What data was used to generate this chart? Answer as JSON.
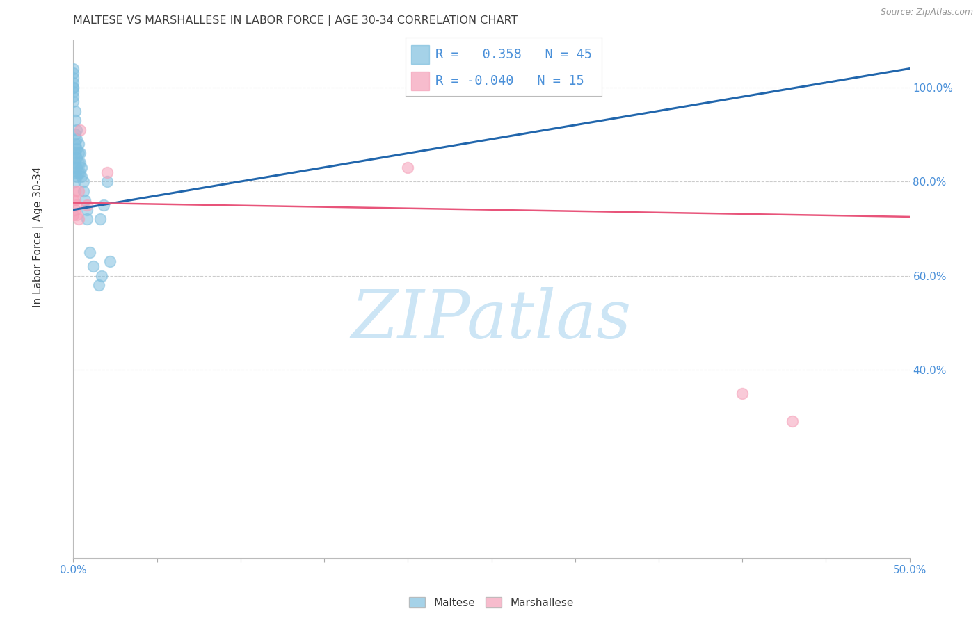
{
  "title": "MALTESE VS MARSHALLESE IN LABOR FORCE | AGE 30-34 CORRELATION CHART",
  "source": "Source: ZipAtlas.com",
  "ylabel": "In Labor Force | Age 30-34",
  "legend_R_blue": "0.358",
  "legend_N_blue": "45",
  "legend_R_pink": "-0.040",
  "legend_N_pink": "15",
  "blue_scatter_color": "#7fbfdf",
  "pink_scatter_color": "#f5a0b8",
  "blue_line_color": "#2166ac",
  "pink_line_color": "#e8547a",
  "right_axis_color": "#4a90d9",
  "watermark_color": "#cce5f5",
  "title_color": "#404040",
  "source_color": "#999999",
  "legend_text_color": "#4a90d9",
  "bottom_legend_text_color": "#333333",
  "xlim": [
    0.0,
    0.5
  ],
  "ylim": [
    0.0,
    1.1
  ],
  "yticks_right": [
    0.4,
    0.6,
    0.8,
    1.0
  ],
  "ytick_labels_right": [
    "40.0%",
    "60.0%",
    "80.0%",
    "100.0%"
  ],
  "maltese_x": [
    0.0,
    0.0,
    0.0,
    0.0,
    0.0,
    0.0,
    0.0,
    0.0,
    0.0,
    0.001,
    0.001,
    0.001,
    0.001,
    0.001,
    0.001,
    0.001,
    0.001,
    0.002,
    0.002,
    0.002,
    0.002,
    0.002,
    0.002,
    0.003,
    0.003,
    0.003,
    0.003,
    0.004,
    0.004,
    0.004,
    0.005,
    0.005,
    0.006,
    0.006,
    0.007,
    0.008,
    0.008,
    0.01,
    0.012,
    0.015,
    0.016,
    0.017,
    0.018,
    0.02,
    0.022
  ],
  "maltese_y": [
    0.97,
    0.99,
    1.0,
    1.01,
    1.02,
    1.03,
    1.04,
    1.0,
    0.98,
    0.93,
    0.95,
    0.9,
    0.88,
    0.86,
    0.84,
    0.82,
    0.8,
    0.91,
    0.89,
    0.87,
    0.85,
    0.83,
    0.81,
    0.88,
    0.86,
    0.84,
    0.82,
    0.86,
    0.84,
    0.82,
    0.83,
    0.81,
    0.8,
    0.78,
    0.76,
    0.74,
    0.72,
    0.65,
    0.62,
    0.58,
    0.72,
    0.6,
    0.75,
    0.8,
    0.63
  ],
  "marshallese_x": [
    0.0,
    0.0,
    0.001,
    0.001,
    0.001,
    0.002,
    0.002,
    0.003,
    0.003,
    0.004,
    0.008,
    0.02,
    0.2,
    0.4,
    0.43
  ],
  "marshallese_y": [
    0.76,
    0.73,
    0.78,
    0.76,
    0.74,
    0.75,
    0.73,
    0.72,
    0.78,
    0.91,
    0.75,
    0.82,
    0.83,
    0.35,
    0.29
  ],
  "blue_trend_x": [
    0.0,
    0.5
  ],
  "blue_trend_y": [
    0.74,
    1.04
  ],
  "pink_trend_x": [
    0.0,
    0.5
  ],
  "pink_trend_y": [
    0.755,
    0.725
  ],
  "watermark": "ZIPatlas",
  "watermark_fontsize": 70
}
